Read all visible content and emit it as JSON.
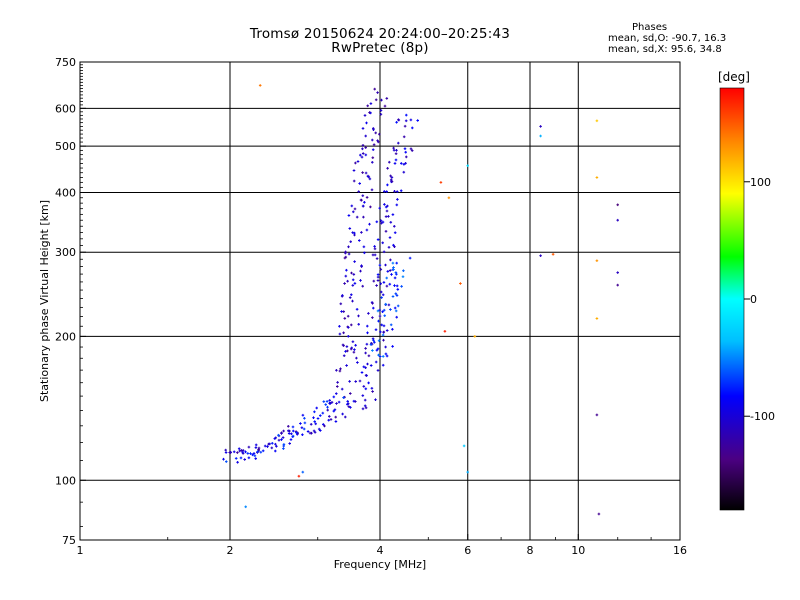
{
  "chart_data": {
    "type": "scatter",
    "title": "Tromsø 20150624 20:24:00–20:25:43",
    "subtitle": "RwPretec (8p)",
    "xlabel": "Frequency [MHz]",
    "ylabel": "Stationary phase Virtual Height [km]",
    "x_scale": "log",
    "y_scale": "log",
    "xlim": [
      1,
      16
    ],
    "ylim": [
      75,
      750
    ],
    "x_ticks": [
      "1",
      "2",
      "4",
      "6",
      "8",
      "10",
      "16"
    ],
    "y_ticks": [
      "75",
      "100",
      "200",
      "300",
      "400",
      "500",
      "600",
      "750"
    ],
    "x_grid_lines": [
      2,
      4,
      6,
      8,
      10
    ],
    "y_grid_lines": [
      100,
      200,
      300,
      400,
      500,
      600
    ],
    "grid": true,
    "colorbar": {
      "label": "[deg]",
      "range": [
        -180,
        180
      ],
      "ticks": [
        "100",
        "0",
        "-100"
      ],
      "tick_values": [
        100,
        0,
        -100
      ]
    },
    "stats": {
      "header": "Phases",
      "line_o": "mean, sd,O: -90.7, 16.3",
      "line_x": "mean, sd,X:  95.6, 34.8"
    },
    "traces": [
      {
        "name": "",
        "phase": -108,
        "points": [
          [
            1.95,
            117
          ],
          [
            2.1,
            114
          ],
          [
            2.3,
            118
          ],
          [
            2.5,
            122
          ],
          [
            2.7,
            128
          ],
          [
            2.9,
            126
          ],
          [
            3.1,
            130
          ],
          [
            3.3,
            140
          ],
          [
            3.4,
            160
          ],
          [
            3.45,
            190
          ],
          [
            3.5,
            230
          ],
          [
            3.55,
            270
          ],
          [
            3.6,
            320
          ],
          [
            3.65,
            380
          ],
          [
            3.7,
            440
          ],
          [
            3.8,
            500
          ],
          [
            3.9,
            570
          ],
          [
            3.95,
            620
          ],
          [
            4.0,
            650
          ]
        ]
      },
      {
        "name": "",
        "phase": -82,
        "points": [
          [
            2.0,
            110
          ],
          [
            2.2,
            113
          ],
          [
            2.45,
            117
          ],
          [
            2.6,
            122
          ],
          [
            2.8,
            130
          ],
          [
            3.0,
            138
          ],
          [
            3.2,
            144
          ],
          [
            3.35,
            150
          ]
        ]
      },
      {
        "name": "",
        "phase": -100,
        "points": [
          [
            3.6,
            140
          ],
          [
            3.75,
            150
          ],
          [
            3.85,
            170
          ],
          [
            3.95,
            200
          ],
          [
            4.0,
            240
          ],
          [
            4.05,
            280
          ],
          [
            4.1,
            320
          ],
          [
            4.15,
            360
          ],
          [
            4.2,
            390
          ],
          [
            4.3,
            440
          ],
          [
            4.4,
            480
          ],
          [
            4.5,
            530
          ],
          [
            4.55,
            580
          ]
        ]
      },
      {
        "name": "",
        "phase": -70,
        "points": [
          [
            4.0,
            180
          ],
          [
            4.1,
            210
          ],
          [
            4.2,
            240
          ],
          [
            4.3,
            265
          ],
          [
            4.4,
            290
          ]
        ]
      }
    ],
    "isolated_points": [
      {
        "x": 2.3,
        "y": 670,
        "phase": 140
      },
      {
        "x": 5.3,
        "y": 420,
        "phase": 160
      },
      {
        "x": 5.5,
        "y": 390,
        "phase": 130
      },
      {
        "x": 5.4,
        "y": 205,
        "phase": 170
      },
      {
        "x": 5.8,
        "y": 258,
        "phase": 150
      },
      {
        "x": 6.2,
        "y": 200,
        "phase": 120
      },
      {
        "x": 6.0,
        "y": 455,
        "phase": -20
      },
      {
        "x": 5.9,
        "y": 118,
        "phase": -30
      },
      {
        "x": 6.0,
        "y": 104,
        "phase": -40
      },
      {
        "x": 2.8,
        "y": 104,
        "phase": -60
      },
      {
        "x": 2.75,
        "y": 102,
        "phase": 170
      },
      {
        "x": 2.15,
        "y": 88,
        "phase": -50
      },
      {
        "x": 8.4,
        "y": 550,
        "phase": -110
      },
      {
        "x": 8.4,
        "y": 525,
        "phase": -40
      },
      {
        "x": 8.4,
        "y": 295,
        "phase": -110
      },
      {
        "x": 8.9,
        "y": 297,
        "phase": 150
      },
      {
        "x": 10.9,
        "y": 565,
        "phase": 110
      },
      {
        "x": 10.9,
        "y": 430,
        "phase": 120
      },
      {
        "x": 10.9,
        "y": 288,
        "phase": 130
      },
      {
        "x": 10.9,
        "y": 218,
        "phase": 120
      },
      {
        "x": 10.9,
        "y": 137,
        "phase": -130
      },
      {
        "x": 11.0,
        "y": 85,
        "phase": -130
      },
      {
        "x": 12.0,
        "y": 377,
        "phase": -140
      },
      {
        "x": 12.0,
        "y": 350,
        "phase": -110
      },
      {
        "x": 12.0,
        "y": 272,
        "phase": -110
      },
      {
        "x": 12.0,
        "y": 256,
        "phase": -130
      }
    ]
  }
}
